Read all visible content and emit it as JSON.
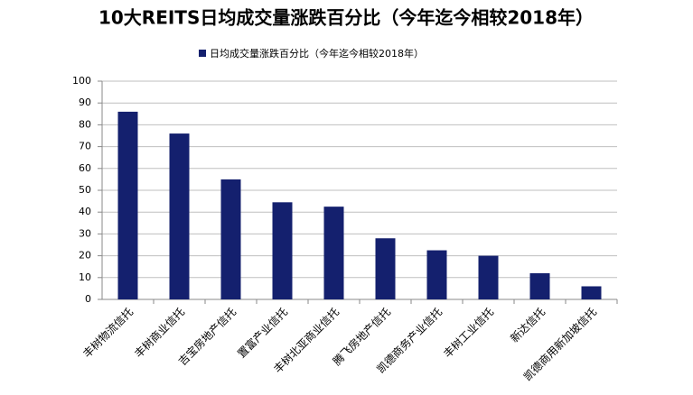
{
  "chart_data": {
    "type": "bar",
    "title": "10大REITS日均成交量涨跌百分比（今年迄今相较2018年）",
    "categories": [
      "丰树物流信托",
      "丰树商业信托",
      "吉宝房地产信托",
      "置富产业信托",
      "丰树北亚商业信托",
      "腾飞房地产信托",
      "凯德商务产业信托",
      "丰树工业信托",
      "新达信托",
      "凯德商用新加坡信托"
    ],
    "series": [
      {
        "name": "日均成交量涨跌百分比（今年迄今相较2018年）",
        "color": "#14206e",
        "values": [
          86,
          76,
          55,
          44.5,
          42.5,
          28,
          22.5,
          20,
          12,
          6
        ]
      }
    ],
    "ylim": [
      0,
      100
    ],
    "yticks": [
      0,
      10,
      20,
      30,
      40,
      50,
      60,
      70,
      80,
      90,
      100
    ],
    "grid": true,
    "legend": "top"
  }
}
